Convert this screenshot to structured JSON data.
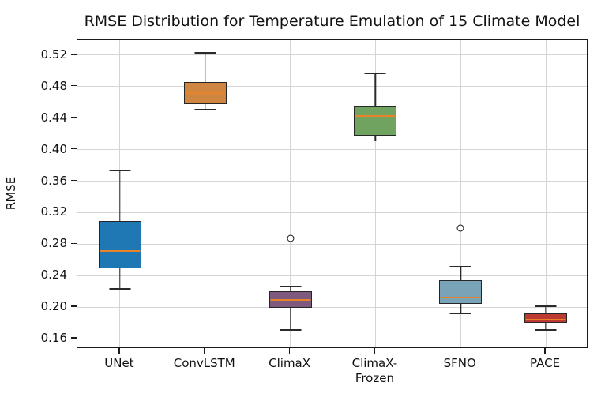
{
  "chart_data": {
    "type": "boxplot",
    "title": "RMSE Distribution for Temperature Emulation of 15 Climate Model",
    "xlabel": "",
    "ylabel": "RMSE",
    "categories": [
      "UNet",
      "ConvLSTM",
      "ClimaX",
      "ClimaX-\nFrozen",
      "SFNO",
      "PACE"
    ],
    "yticks": [
      0.16,
      0.2,
      0.24,
      0.28,
      0.32,
      0.36,
      0.4,
      0.44,
      0.48,
      0.52
    ],
    "ylim": [
      0.147,
      0.539
    ],
    "grid": true,
    "legend": "none",
    "median_color": "#e8832b",
    "whisker_color": "#2a2a2a",
    "outlier_style": "open-circle",
    "series": [
      {
        "label": "UNet",
        "whislo": 0.223,
        "q1": 0.249,
        "med": 0.271,
        "q3": 0.309,
        "whishi": 0.374,
        "fliers": [],
        "color": "#1f77b4"
      },
      {
        "label": "ConvLSTM",
        "whislo": 0.451,
        "q1": 0.458,
        "med": 0.472,
        "q3": 0.486,
        "whishi": 0.523,
        "fliers": [],
        "color": "#cf8640"
      },
      {
        "label": "ClimaX",
        "whislo": 0.171,
        "q1": 0.199,
        "med": 0.209,
        "q3": 0.22,
        "whishi": 0.227,
        "fliers": [
          0.287
        ],
        "color": "#7e5a7e"
      },
      {
        "label": "ClimaX-Frozen",
        "whislo": 0.411,
        "q1": 0.418,
        "med": 0.443,
        "q3": 0.456,
        "whishi": 0.497,
        "fliers": [],
        "color": "#70a35f"
      },
      {
        "label": "SFNO",
        "whislo": 0.192,
        "q1": 0.204,
        "med": 0.212,
        "q3": 0.234,
        "whishi": 0.252,
        "fliers": [
          0.3
        ],
        "color": "#79a3b6"
      },
      {
        "label": "PACE",
        "whislo": 0.171,
        "q1": 0.18,
        "med": 0.184,
        "q3": 0.192,
        "whishi": 0.201,
        "fliers": [],
        "color": "#bc3a32"
      }
    ]
  }
}
